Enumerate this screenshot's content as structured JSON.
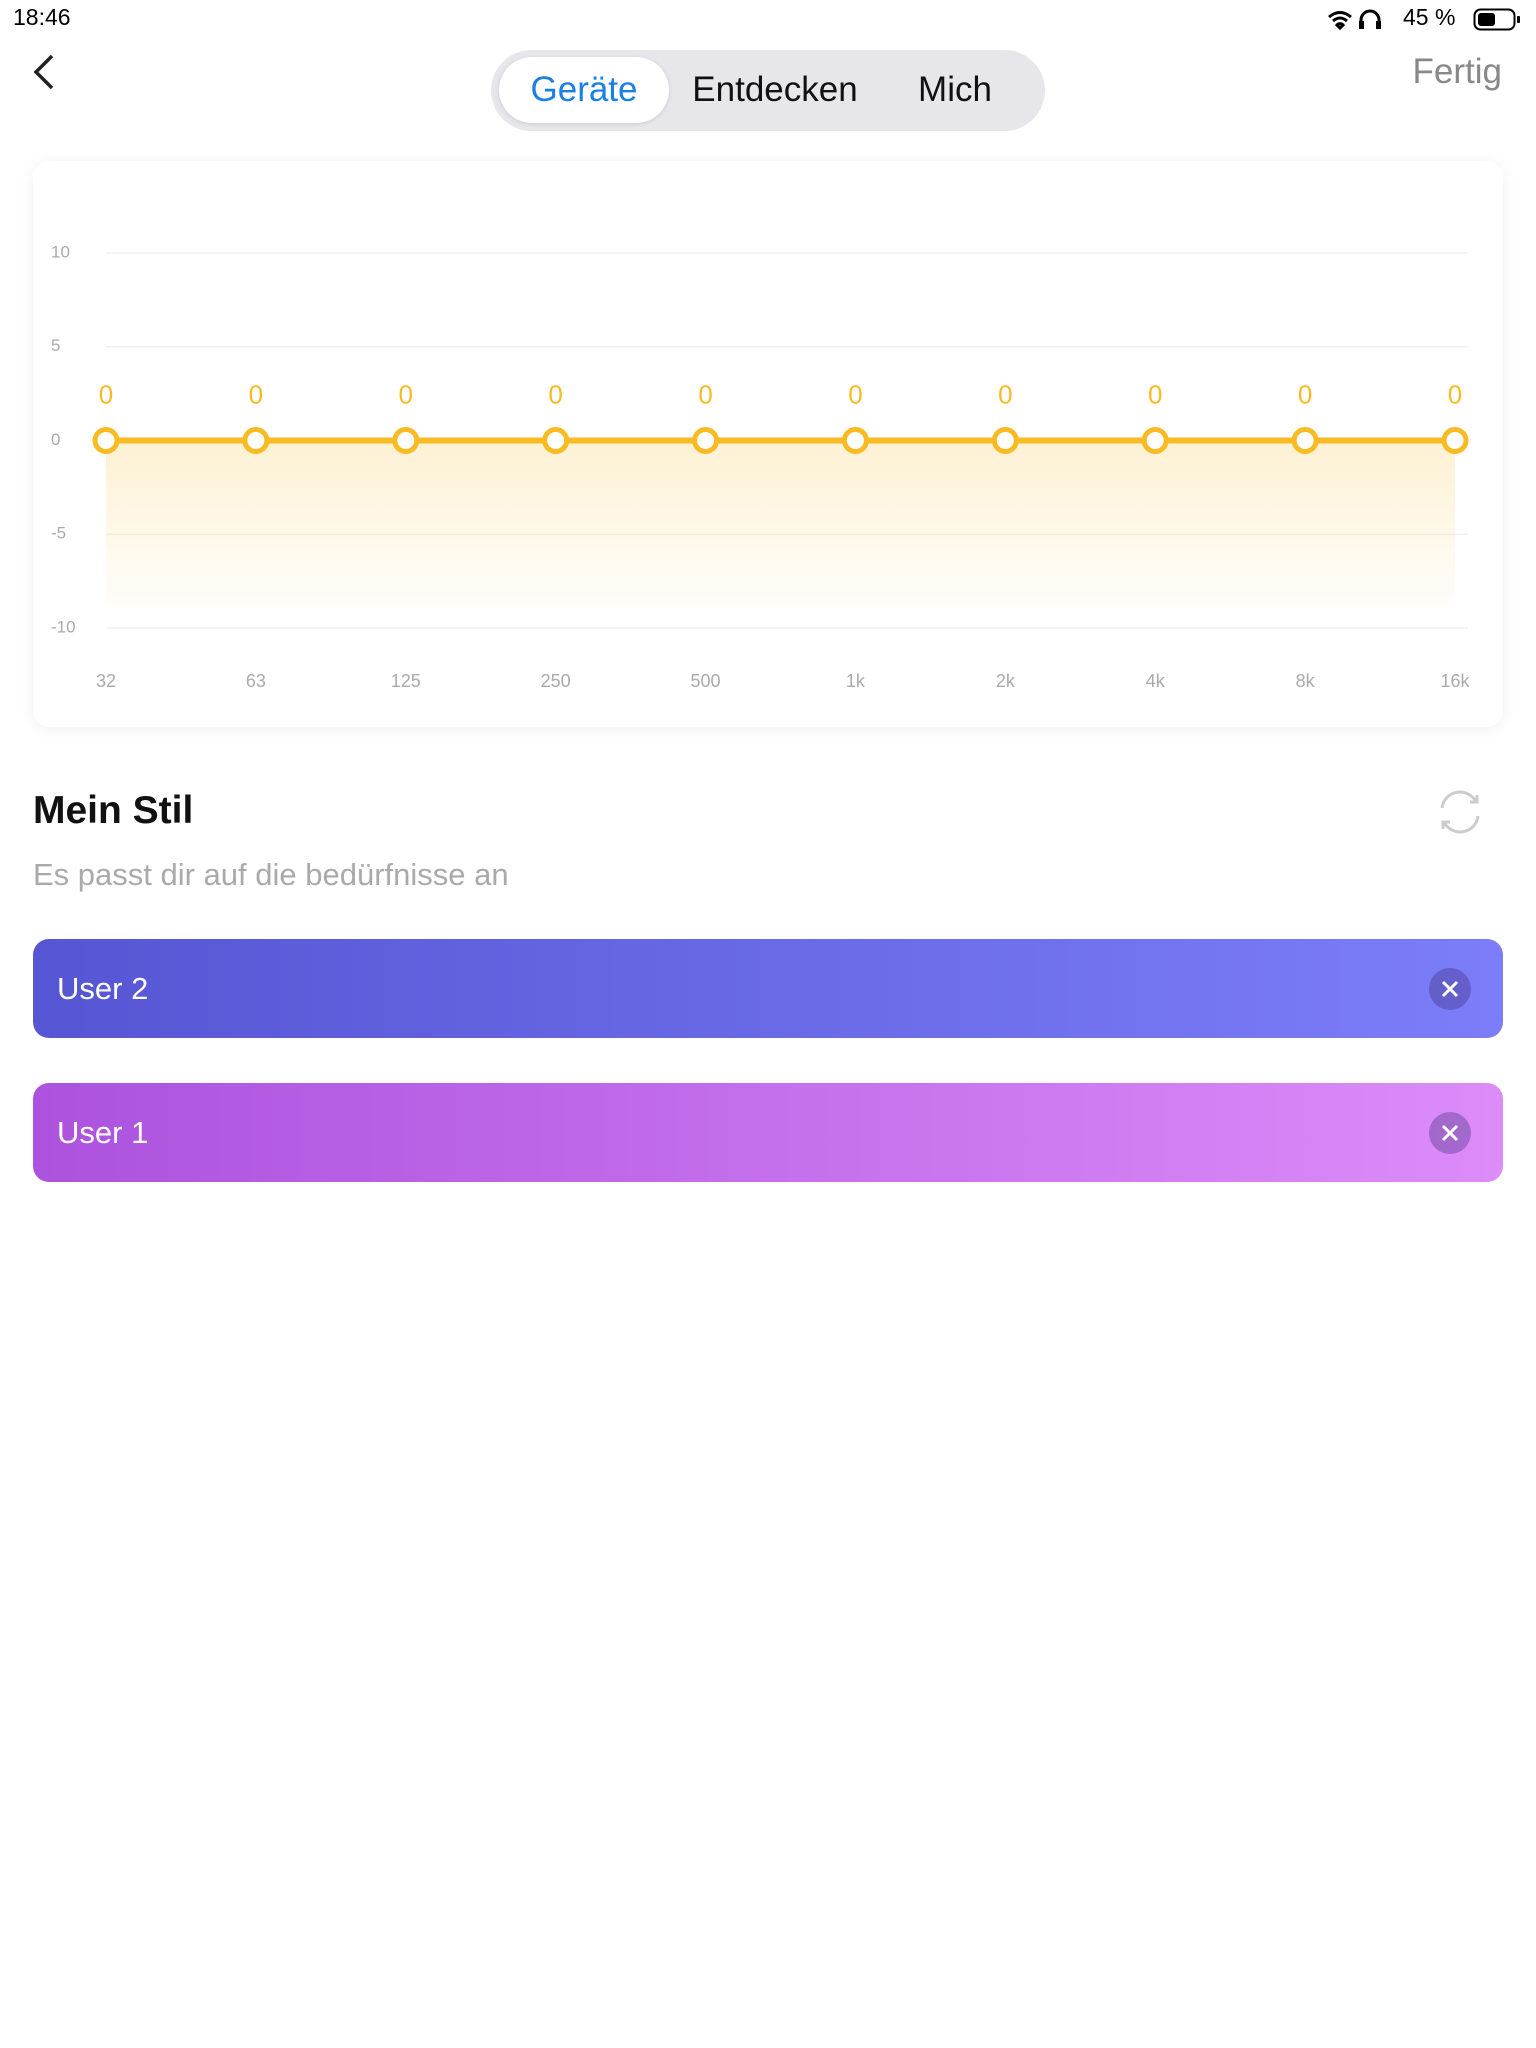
{
  "status_bar": {
    "time": "18:46",
    "battery": "45 %"
  },
  "nav": {
    "tabs": [
      "Geräte",
      "Entdecken",
      "Mich"
    ],
    "done": "Fertig"
  },
  "chart_data": {
    "type": "line",
    "categories": [
      "32",
      "63",
      "125",
      "250",
      "500",
      "1k",
      "2k",
      "4k",
      "8k",
      "16k"
    ],
    "values": [
      0,
      0,
      0,
      0,
      0,
      0,
      0,
      0,
      0,
      0
    ],
    "color": "#f8bb24",
    "ylim": [
      -10,
      10
    ],
    "yticks": [
      10,
      5,
      0,
      -5,
      -10
    ],
    "grid": true
  },
  "section": {
    "title": "Mein Stil",
    "subtitle": "Es passt dir auf die bedürfnisse an",
    "presets": [
      "User 2",
      "User 1"
    ]
  }
}
